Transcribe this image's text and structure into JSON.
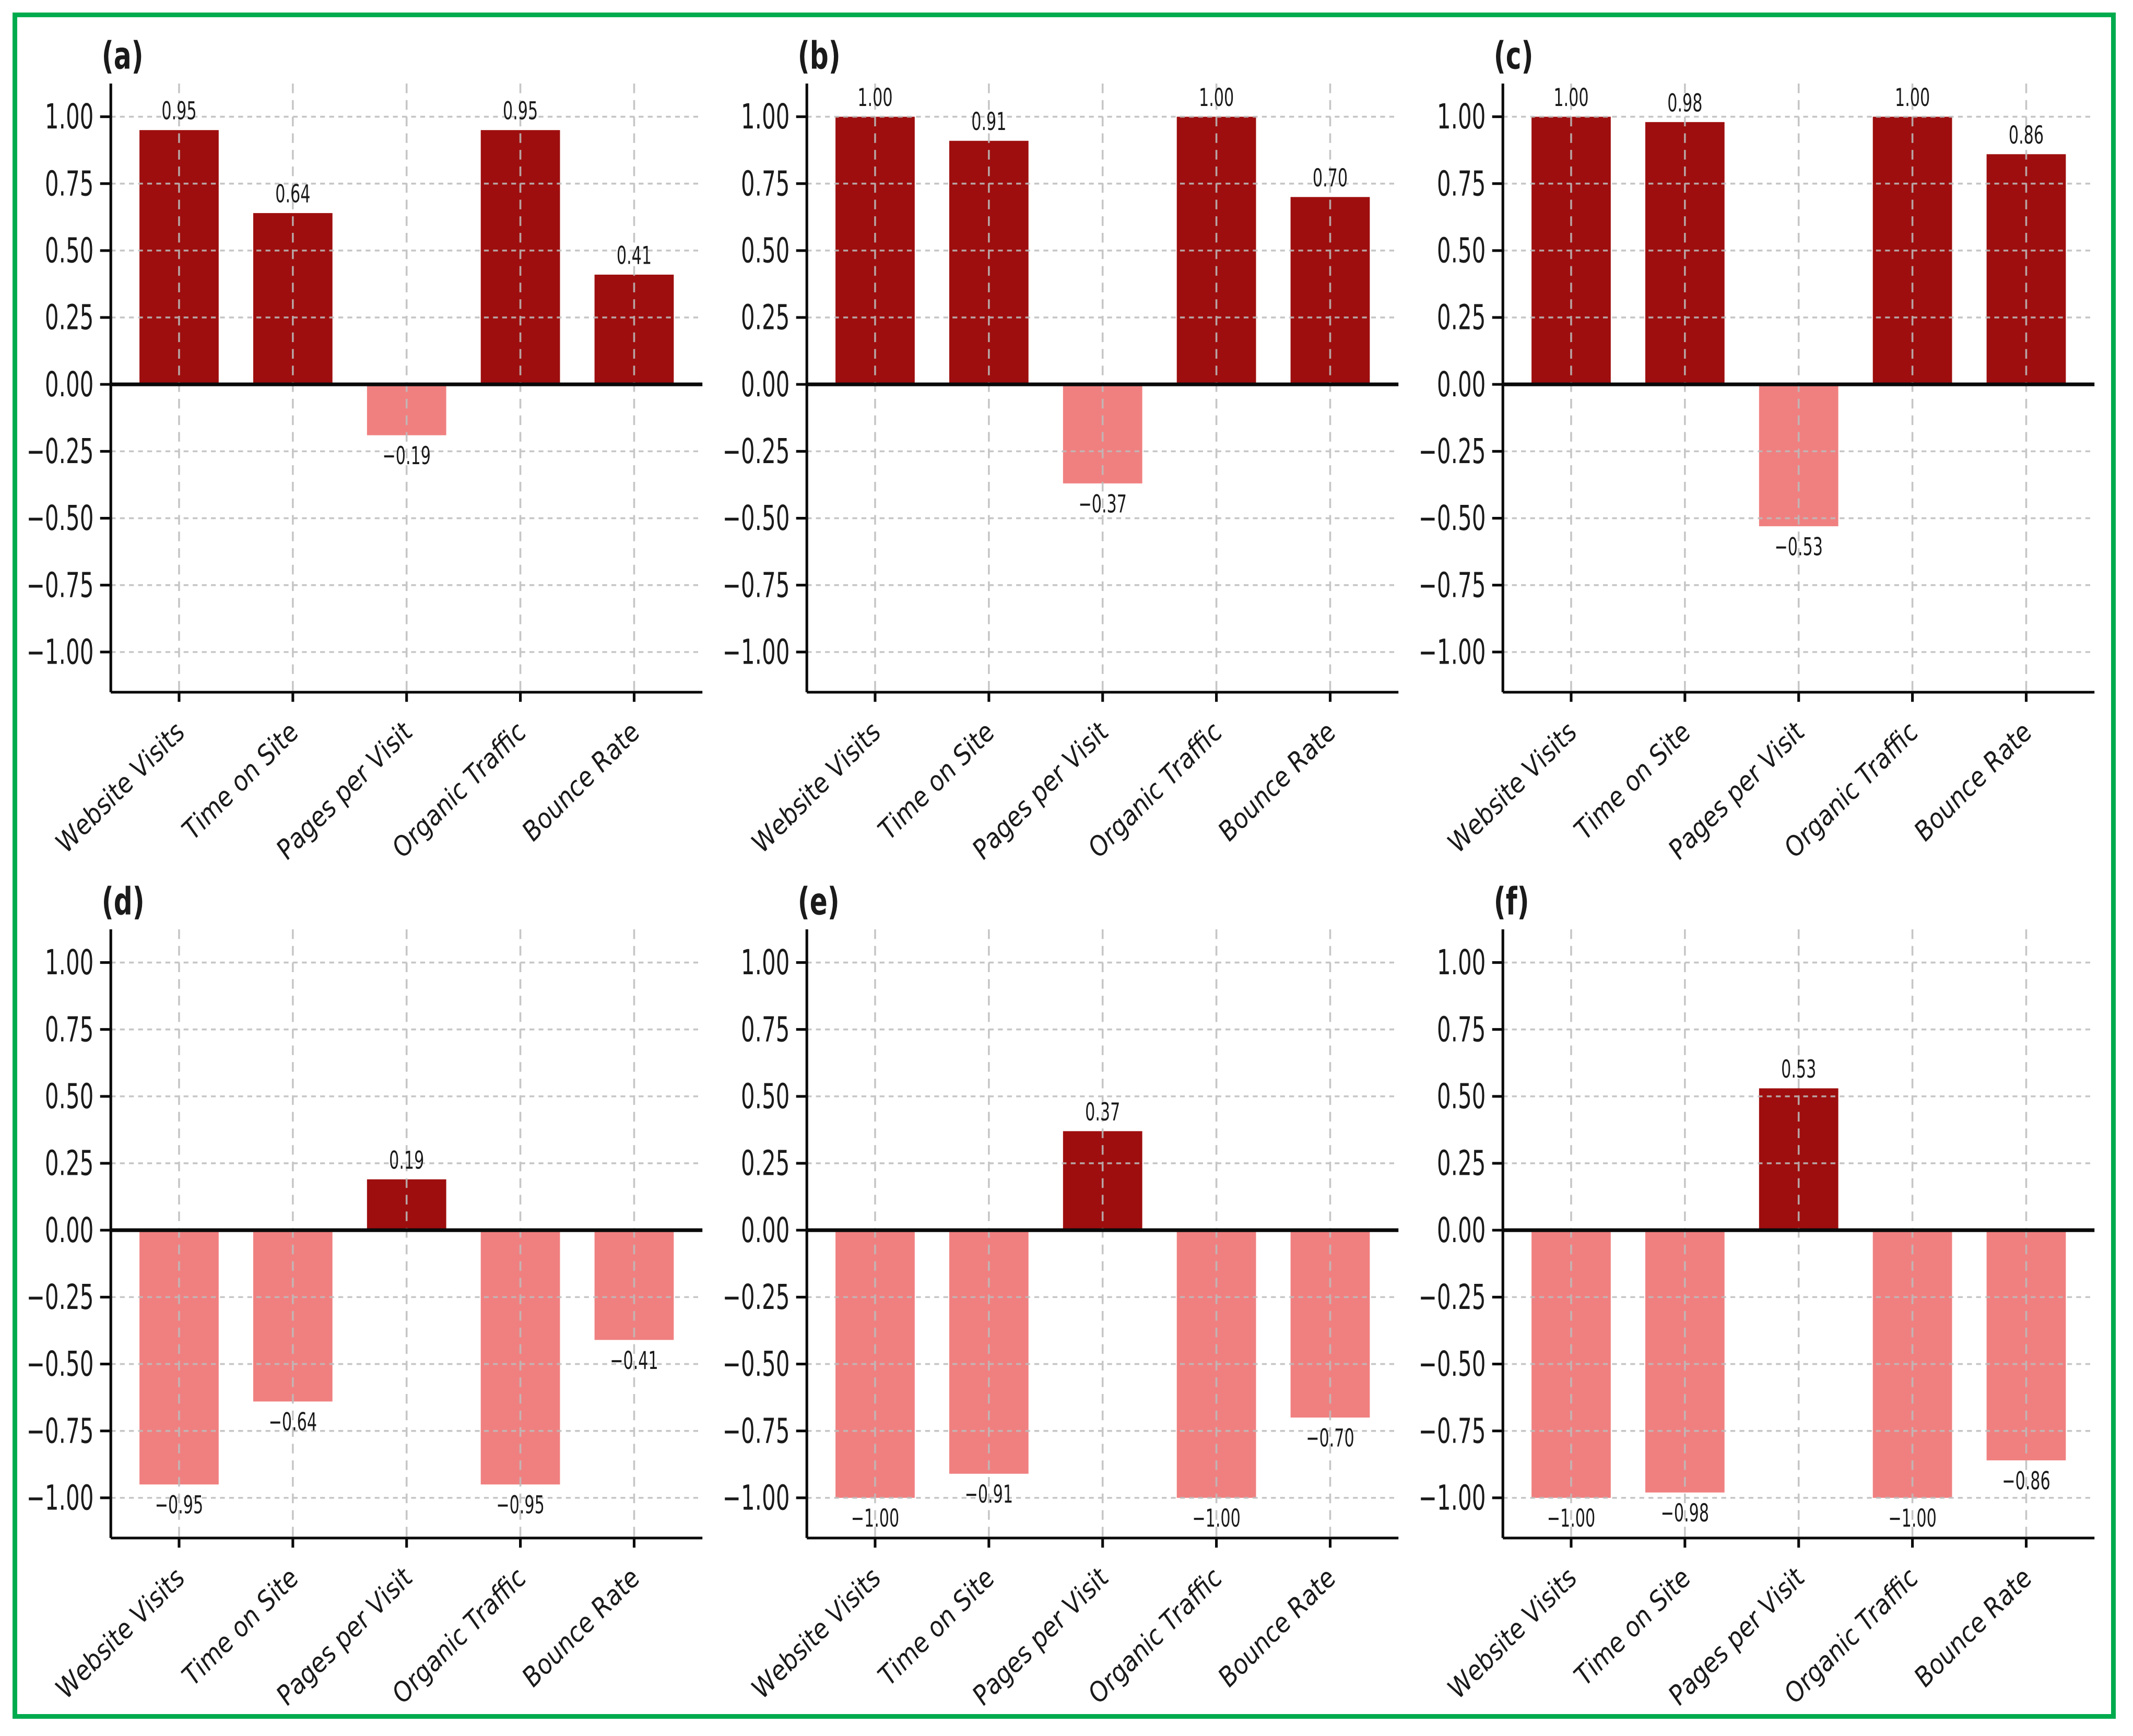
{
  "figure": {
    "description": "2x3 grid of correlation bar charts",
    "border_color": "#00AB4E",
    "background_color": "#FFFFFF"
  },
  "style": {
    "positive_bar_color": "#9E0E0E",
    "negative_bar_color": "#F08080",
    "gridline_color": "#BDBDBD",
    "axis_color": "#0A0A0A",
    "text_color": "#1A1A1A"
  },
  "axes": {
    "y_min": -1.0,
    "y_max": 1.0,
    "y_tick_step": 0.25,
    "y_ticks": [
      1.0,
      0.75,
      0.5,
      0.25,
      0.0,
      -0.25,
      -0.5,
      -0.75,
      -1.0
    ],
    "grid": "dashed",
    "x_label_rotation_deg": 45,
    "x_label_style": "italic"
  },
  "categories": [
    "Website Visits",
    "Time on Site",
    "Pages per Visit",
    "Organic Traffic",
    "Bounce Rate"
  ],
  "chart_data": [
    {
      "type": "bar",
      "id": "a",
      "label": "(a)",
      "categories": [
        "Website Visits",
        "Time on Site",
        "Pages per Visit",
        "Organic Traffic",
        "Bounce Rate"
      ],
      "values": [
        0.95,
        0.64,
        -0.19,
        0.95,
        0.41
      ],
      "ylim": [
        -1,
        1
      ]
    },
    {
      "type": "bar",
      "id": "b",
      "label": "(b)",
      "categories": [
        "Website Visits",
        "Time on Site",
        "Pages per Visit",
        "Organic Traffic",
        "Bounce Rate"
      ],
      "values": [
        1.0,
        0.91,
        -0.37,
        1.0,
        0.7
      ],
      "ylim": [
        -1,
        1
      ]
    },
    {
      "type": "bar",
      "id": "c",
      "label": "(c)",
      "categories": [
        "Website Visits",
        "Time on Site",
        "Pages per Visit",
        "Organic Traffic",
        "Bounce Rate"
      ],
      "values": [
        1.0,
        0.98,
        -0.53,
        1.0,
        0.86
      ],
      "ylim": [
        -1,
        1
      ]
    },
    {
      "type": "bar",
      "id": "d",
      "label": "(d)",
      "categories": [
        "Website Visits",
        "Time on Site",
        "Pages per Visit",
        "Organic Traffic",
        "Bounce Rate"
      ],
      "values": [
        -0.95,
        -0.64,
        0.19,
        -0.95,
        -0.41
      ],
      "ylim": [
        -1,
        1
      ]
    },
    {
      "type": "bar",
      "id": "e",
      "label": "(e)",
      "categories": [
        "Website Visits",
        "Time on Site",
        "Pages per Visit",
        "Organic Traffic",
        "Bounce Rate"
      ],
      "values": [
        -1.0,
        -0.91,
        0.37,
        -1.0,
        -0.7
      ],
      "ylim": [
        -1,
        1
      ]
    },
    {
      "type": "bar",
      "id": "f",
      "label": "(f)",
      "categories": [
        "Website Visits",
        "Time on Site",
        "Pages per Visit",
        "Organic Traffic",
        "Bounce Rate"
      ],
      "values": [
        -1.0,
        -0.98,
        0.53,
        -1.0,
        -0.86
      ],
      "ylim": [
        -1,
        1
      ]
    }
  ]
}
